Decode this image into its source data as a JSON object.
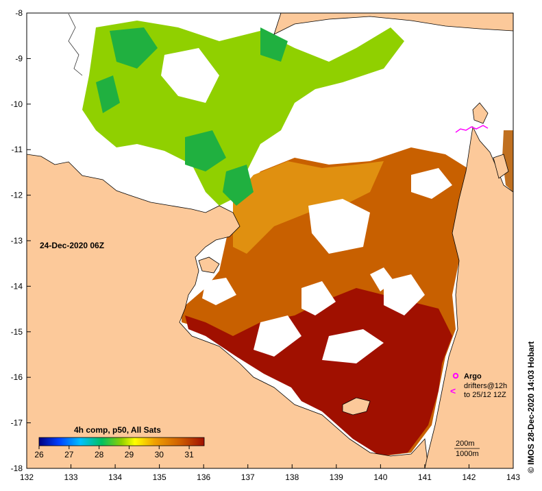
{
  "map": {
    "date_label": "24-Dec-2020 06Z",
    "credit": "© IMOS 28-Dec-2020 14:03 Hobart",
    "lon_ticks": [
      "132",
      "133",
      "134",
      "135",
      "136",
      "137",
      "138",
      "139",
      "140",
      "141",
      "142",
      "143"
    ],
    "lat_ticks": [
      "-8",
      "-9",
      "-10",
      "-11",
      "-12",
      "-13",
      "-14",
      "-15",
      "-16",
      "-17",
      "-18"
    ],
    "lon_range": [
      132,
      143
    ],
    "lat_range": [
      -8,
      -18
    ]
  },
  "colorbar": {
    "title": "4h comp, p50, All Sats",
    "ticks": [
      "26",
      "27",
      "28",
      "29",
      "30",
      "31"
    ],
    "range": [
      26,
      31.5
    ],
    "stops": [
      "#000080",
      "#0040ff",
      "#00c0ff",
      "#00c060",
      "#90d000",
      "#ffff00",
      "#f0a000",
      "#d06000",
      "#a01000"
    ]
  },
  "legend": {
    "argo": "Argo",
    "drifters": "drifters@12h",
    "drifters_to": "to 25/12 12Z",
    "argo_color": "#ff00ff"
  },
  "scale": {
    "contour_200": "200m",
    "contour_1000": "1000m"
  },
  "colors": {
    "land": "#fcc99a",
    "no_data": "#ffffff",
    "sst_hot": "#a01000",
    "sst_warm": "#c86000",
    "sst_mid": "#f0a000",
    "sst_cool": "#90d000",
    "sst_cold": "#20b040"
  }
}
